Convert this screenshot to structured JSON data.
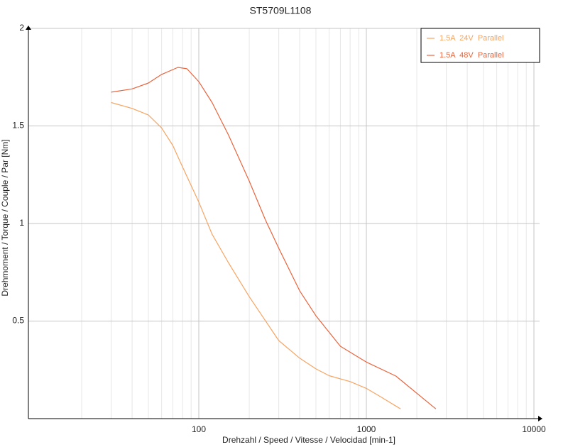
{
  "chart_data": {
    "type": "line",
    "title": "ST5709L1108",
    "x_label": "Drehzahl / Speed / Vitesse / Velocidad [min-1]",
    "y_label": "Drehmoment / Torque / Couple / Par [Nm]",
    "x_scale": "log",
    "xlim": [
      10,
      10000
    ],
    "xticks": [
      100,
      1000,
      10000
    ],
    "ylim": [
      0,
      2
    ],
    "yticks": [
      0.5,
      1,
      1.5,
      2
    ],
    "grid": true,
    "minor_grid": true,
    "legend": "upper right",
    "series": [
      {
        "name": "1.5A  24V  Parallel",
        "color": "#f6a461",
        "x": [
          30,
          40,
          50,
          60,
          70,
          80,
          100,
          120,
          150,
          200,
          300,
          400,
          500,
          600,
          800,
          1000,
          1200,
          1600
        ],
        "values": [
          1.62,
          1.59,
          1.556,
          1.49,
          1.4,
          1.29,
          1.11,
          0.945,
          0.8,
          0.625,
          0.4,
          0.31,
          0.255,
          0.22,
          0.19,
          0.155,
          0.115,
          0.05
        ]
      },
      {
        "name": "1.5A  48V  Parallel",
        "color": "#e8643c",
        "x": [
          30,
          40,
          50,
          60,
          75,
          85,
          100,
          120,
          150,
          200,
          250,
          300,
          400,
          500,
          700,
          1000,
          1500,
          2600
        ],
        "values": [
          1.673,
          1.69,
          1.72,
          1.764,
          1.8,
          1.793,
          1.727,
          1.62,
          1.455,
          1.218,
          1.018,
          0.873,
          0.655,
          0.527,
          0.371,
          0.29,
          0.218,
          0.05
        ]
      }
    ]
  }
}
